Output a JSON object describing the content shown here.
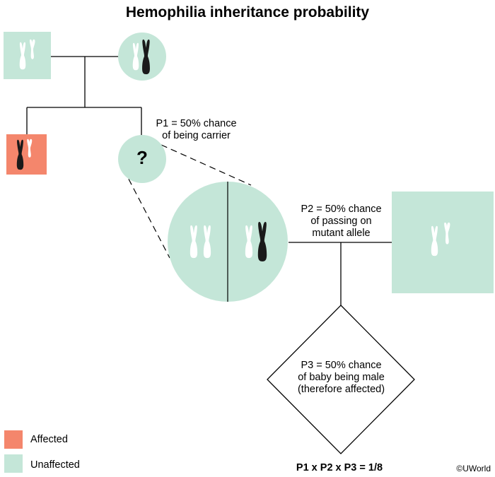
{
  "title": "Hemophilia inheritance probability",
  "colors": {
    "affected": "#f4866c",
    "unaffected": "#c4e6d8",
    "line": "#000000"
  },
  "members": {
    "father": {
      "status": "Unaffected",
      "chromosomes": "X-Y"
    },
    "mother": {
      "status": "Unaffected",
      "chromosomes": "X-Xmutant",
      "is_carrier": true
    },
    "brother": {
      "status": "Affected",
      "chromosomes": "Xmutant-Y"
    },
    "sister": {
      "symbol": "?",
      "chromosomes": "unknown"
    },
    "partner": {
      "status": "Unaffected",
      "chromosomes": "X-Y"
    },
    "sister_genotype_options": [
      "X-X",
      "X-Xmutant"
    ]
  },
  "labels": {
    "p1_line1": "P1 = 50% chance",
    "p1_line2": "of being carrier",
    "p2_line1": "P2 = 50% chance",
    "p2_line2": "of passing on",
    "p2_line3": "mutant allele",
    "p3_line1": "P3 = 50% chance",
    "p3_line2": "of baby being male",
    "p3_line3": "(therefore affected)"
  },
  "legend": [
    {
      "label": "Affected",
      "color": "#f4866c"
    },
    {
      "label": "Unaffected",
      "color": "#c4e6d8"
    }
  ],
  "formula": "P1 x P2 x P3 = 1/8",
  "credit": "©UWorld"
}
